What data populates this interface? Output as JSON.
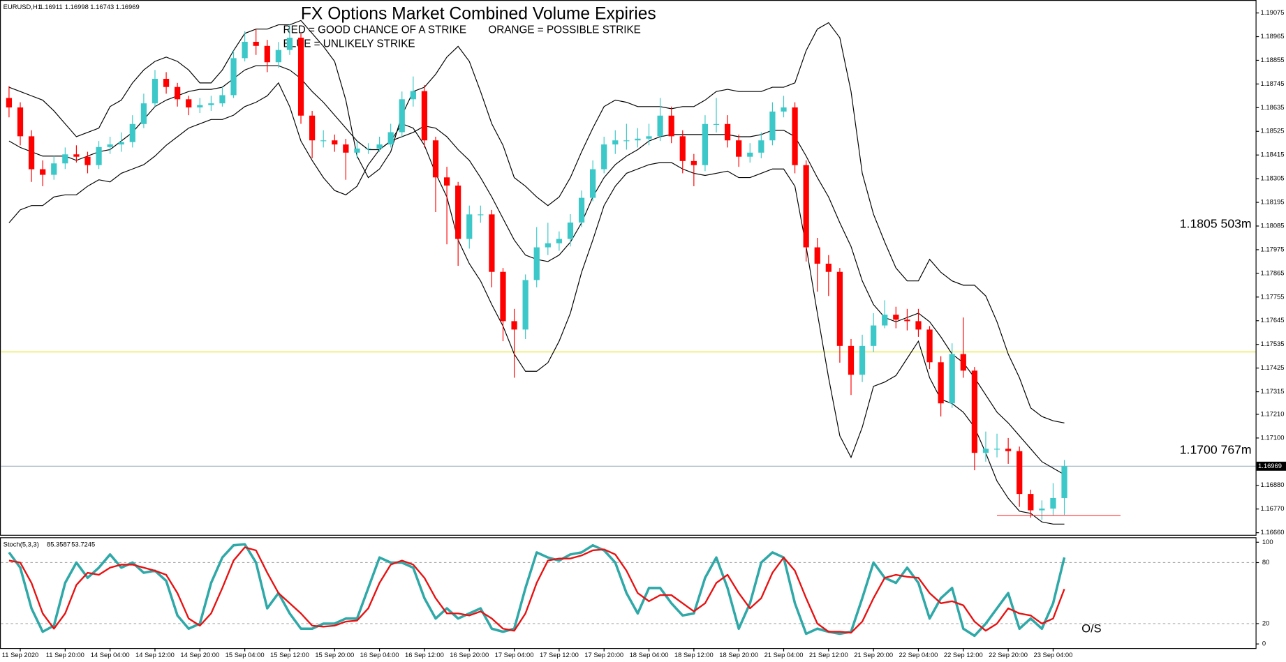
{
  "chart_data": [
    {
      "type": "candlestick",
      "header": "EURUSD,H1",
      "header_values": [
        1.16911,
        1.16998,
        1.16743,
        1.16969
      ],
      "title": "FX Options Market Combined Volume Expiries",
      "notes": [
        {
          "text": "RED = GOOD CHANCE OF A STRIKE",
          "color": "#ff2020"
        },
        {
          "text": "ORANGE = POSSIBLE STRIKE",
          "color": "#ff7a30"
        },
        {
          "text": "BLUE = UNLIKELY STRIKE",
          "color": "#3cc8d0"
        }
      ],
      "annotations": [
        {
          "value": 1.1805,
          "label": "1.1805 503m",
          "color": "#28c0d0"
        },
        {
          "value": 1.17,
          "label": "1.1700 767m",
          "color": "#ff1a1a"
        }
      ],
      "levels": [
        {
          "value": 1.175,
          "color": "#e8e830"
        }
      ],
      "strike_marks": [
        {
          "value": 1.1674,
          "color": "#ff3030"
        }
      ],
      "current_price": 1.16969,
      "current_price_color": "#9ab0c0",
      "up_color": "#3cc8c8",
      "down_color": "#ff0000",
      "categories": [
        null,
        "11 Sep 2020",
        null,
        null,
        null,
        "11 Sep 20:00",
        null,
        null,
        null,
        "14 Sep 04:00",
        null,
        null,
        null,
        "14 Sep 12:00",
        null,
        null,
        null,
        "14 Sep 20:00",
        null,
        null,
        null,
        "15 Sep 04:00",
        null,
        null,
        null,
        "15 Sep 12:00",
        null,
        null,
        null,
        "15 Sep 20:00",
        null,
        null,
        null,
        "16 Sep 04:00",
        null,
        null,
        null,
        "16 Sep 12:00",
        null,
        null,
        null,
        "16 Sep 20:00",
        null,
        null,
        null,
        "17 Sep 04:00",
        null,
        null,
        null,
        "17 Sep 12:00",
        null,
        null,
        null,
        "17 Sep 20:00",
        null,
        null,
        null,
        "18 Sep 04:00",
        null,
        null,
        null,
        "18 Sep 12:00",
        null,
        null,
        null,
        "18 Sep 20:00",
        null,
        null,
        null,
        "21 Sep 04:00",
        null,
        null,
        null,
        "21 Sep 12:00",
        null,
        null,
        null,
        "21 Sep 20:00",
        null,
        null,
        null,
        "22 Sep 04:00",
        null,
        null,
        null,
        "22 Sep 12:00",
        null,
        null,
        null,
        "22 Sep 20:00",
        null,
        null,
        null,
        "23 Sep 04:00",
        null
      ],
      "open": [
        1.1868,
        1.18636,
        1.18502,
        1.18349,
        1.18323,
        1.18376,
        1.18418,
        1.18407,
        1.18368,
        1.18452,
        1.18464,
        1.18475,
        1.18559,
        1.18655,
        1.18769,
        1.18731,
        1.18674,
        1.18636,
        1.18647,
        1.18655,
        1.18693,
        1.18865,
        1.18941,
        1.18922,
        1.18846,
        1.18903,
        1.1896,
        1.18598,
        1.18483,
        1.18483,
        1.18464,
        1.18426,
        1.18445,
        1.18445,
        1.18464,
        1.18521,
        1.18674,
        1.18712,
        1.18483,
        1.18311,
        1.18273,
        1.18025,
        1.18139,
        1.18139,
        1.17872,
        1.17643,
        1.17604,
        1.17834,
        1.17986,
        1.18005,
        1.18025,
        1.18101,
        1.18216,
        1.18349,
        1.18464,
        1.18483,
        1.18483,
        1.18491,
        1.18502,
        1.18598,
        1.18502,
        1.18387,
        1.18368,
        1.18559,
        1.18559,
        1.18483,
        1.18407,
        1.18426,
        1.18483,
        1.18617,
        1.18636,
        1.18368,
        1.17986,
        1.1791,
        1.17872,
        1.17528,
        1.17394,
        1.17528,
        1.17623,
        1.17673,
        1.1765,
        1.17643,
        1.17604,
        1.17452,
        1.17261,
        1.1749,
        1.17413,
        1.17031,
        1.1705,
        1.1705,
        1.17039,
        1.1684,
        1.16764,
        1.16772,
        1.16821
      ],
      "high": [
        1.18735,
        1.1866,
        1.1853,
        1.1839,
        1.1841,
        1.1845,
        1.1846,
        1.1843,
        1.1848,
        1.185,
        1.1852,
        1.186,
        1.187,
        1.1881,
        1.188,
        1.1875,
        1.1869,
        1.1868,
        1.1869,
        1.1873,
        1.189,
        1.1899,
        1.19,
        1.1895,
        1.1894,
        1.1902,
        1.1898,
        1.1862,
        1.1853,
        1.1851,
        1.1849,
        1.1848,
        1.1847,
        1.185,
        1.1856,
        1.1871,
        1.1878,
        1.1874,
        1.185,
        1.1836,
        1.1829,
        1.1818,
        1.1818,
        1.1816,
        1.1789,
        1.177,
        1.1786,
        1.1808,
        1.181,
        1.1806,
        1.1814,
        1.1825,
        1.1839,
        1.185,
        1.1853,
        1.1856,
        1.1854,
        1.1856,
        1.1868,
        1.1864,
        1.1853,
        1.1842,
        1.186,
        1.1868,
        1.186,
        1.1851,
        1.1847,
        1.1852,
        1.1866,
        1.1869,
        1.1866,
        1.1839,
        1.1803,
        1.1795,
        1.1789,
        1.1756,
        1.1758,
        1.1768,
        1.1774,
        1.1771,
        1.177,
        1.177,
        1.1762,
        1.1748,
        1.1754,
        1.1766,
        1.1743,
        1.1713,
        1.1712,
        1.171,
        1.1706,
        1.1686,
        1.1681,
        1.1689,
        1.16998
      ],
      "low": [
        1.1859,
        1.1846,
        1.1829,
        1.1827,
        1.183,
        1.1835,
        1.1838,
        1.1833,
        1.1835,
        1.1842,
        1.1843,
        1.1845,
        1.1854,
        1.1864,
        1.187,
        1.1864,
        1.186,
        1.1861,
        1.1862,
        1.1864,
        1.1868,
        1.1885,
        1.1888,
        1.188,
        1.1882,
        1.1888,
        1.1856,
        1.184,
        1.1845,
        1.1843,
        1.183,
        1.184,
        1.1842,
        1.1843,
        1.1845,
        1.185,
        1.1864,
        1.1845,
        1.1815,
        1.18,
        1.179,
        1.1798,
        1.181,
        1.178,
        1.1755,
        1.1738,
        1.1756,
        1.178,
        1.1795,
        1.1797,
        1.1799,
        1.1808,
        1.182,
        1.1833,
        1.1842,
        1.1844,
        1.1845,
        1.1846,
        1.1848,
        1.1847,
        1.1833,
        1.1827,
        1.1834,
        1.1852,
        1.1845,
        1.1836,
        1.1838,
        1.184,
        1.1846,
        1.1859,
        1.1833,
        1.1792,
        1.1778,
        1.1776,
        1.1745,
        1.173,
        1.1736,
        1.175,
        1.1761,
        1.1761,
        1.176,
        1.1757,
        1.1742,
        1.172,
        1.1724,
        1.1738,
        1.1695,
        1.1699,
        1.1701,
        1.1698,
        1.1678,
        1.1673,
        1.1672,
        1.1674,
        1.16743
      ],
      "close": [
        1.18636,
        1.18502,
        1.18349,
        1.18323,
        1.18376,
        1.18418,
        1.18407,
        1.18368,
        1.18452,
        1.18464,
        1.18475,
        1.18559,
        1.18655,
        1.18769,
        1.18731,
        1.18674,
        1.18636,
        1.18647,
        1.18655,
        1.18693,
        1.18865,
        1.18941,
        1.18922,
        1.18846,
        1.18903,
        1.1896,
        1.18598,
        1.18483,
        1.18483,
        1.18464,
        1.18426,
        1.18445,
        1.18445,
        1.18464,
        1.18521,
        1.18674,
        1.18712,
        1.18483,
        1.18311,
        1.18273,
        1.18025,
        1.18139,
        1.18139,
        1.17872,
        1.17643,
        1.17604,
        1.17834,
        1.17986,
        1.18005,
        1.18025,
        1.18101,
        1.18216,
        1.18349,
        1.18464,
        1.18483,
        1.18483,
        1.18491,
        1.18502,
        1.18598,
        1.18502,
        1.18387,
        1.18368,
        1.18559,
        1.18559,
        1.18483,
        1.18407,
        1.18426,
        1.18483,
        1.18617,
        1.18636,
        1.18368,
        1.17986,
        1.1791,
        1.17872,
        1.17528,
        1.17394,
        1.17528,
        1.17623,
        1.17673,
        1.1765,
        1.17643,
        1.17604,
        1.17452,
        1.17261,
        1.1749,
        1.17413,
        1.17031,
        1.1705,
        1.1705,
        1.17039,
        1.1684,
        1.16764,
        1.16772,
        1.16821,
        1.16969
      ],
      "bands": [
        {
          "color": "#000000",
          "values": [
            1.1873,
            1.1871,
            1.1869,
            1.1867,
            1.1862,
            1.1856,
            1.185,
            1.1852,
            1.1854,
            1.1864,
            1.1867,
            1.1875,
            1.1881,
            1.1885,
            1.1887,
            1.1885,
            1.1881,
            1.1875,
            1.1875,
            1.1881,
            1.189,
            1.1898,
            1.19,
            1.19,
            1.1902,
            1.1902,
            1.1904,
            1.1898,
            1.1892,
            1.1885,
            1.1867,
            1.1841,
            1.1831,
            1.1835,
            1.1843,
            1.186,
            1.1871,
            1.1873,
            1.1879,
            1.1887,
            1.1892,
            1.1885,
            1.1871,
            1.1856,
            1.1846,
            1.1831,
            1.1827,
            1.1822,
            1.1818,
            1.1822,
            1.1831,
            1.1843,
            1.1854,
            1.1864,
            1.1867,
            1.1866,
            1.1864,
            1.1864,
            1.1864,
            1.1863,
            1.1864,
            1.1864,
            1.1867,
            1.1871,
            1.1872,
            1.1871,
            1.1871,
            1.1871,
            1.1873,
            1.1873,
            1.1875,
            1.189,
            1.19,
            1.1903,
            1.1896,
            1.1871,
            1.1833,
            1.1814,
            1.1801,
            1.1789,
            1.1783,
            1.1783,
            1.1793,
            1.1787,
            1.1783,
            1.1781,
            1.1781,
            1.1776,
            1.1764,
            1.1749,
            1.1738,
            1.1724,
            1.172,
            1.1718,
            1.1717
          ]
        },
        {
          "color": "#000000",
          "values": [
            1.1848,
            1.1845,
            1.1843,
            1.1841,
            1.1841,
            1.1841,
            1.1839,
            1.1841,
            1.1843,
            1.1844,
            1.1848,
            1.1852,
            1.1858,
            1.1864,
            1.1867,
            1.1869,
            1.1871,
            1.1872,
            1.1872,
            1.1873,
            1.1877,
            1.1881,
            1.1883,
            1.1883,
            1.1883,
            1.1881,
            1.1877,
            1.1871,
            1.1866,
            1.186,
            1.1854,
            1.1848,
            1.1844,
            1.1844,
            1.1848,
            1.185,
            1.1852,
            1.1855,
            1.1854,
            1.185,
            1.1844,
            1.1839,
            1.1831,
            1.1822,
            1.1812,
            1.1802,
            1.1795,
            1.1793,
            1.1792,
            1.1795,
            1.1801,
            1.181,
            1.1822,
            1.1831,
            1.1837,
            1.1841,
            1.1844,
            1.1848,
            1.185,
            1.1851,
            1.1851,
            1.1851,
            1.1851,
            1.1851,
            1.1851,
            1.185,
            1.185,
            1.1851,
            1.1853,
            1.1853,
            1.185,
            1.1841,
            1.1831,
            1.1822,
            1.181,
            1.1799,
            1.1783,
            1.1772,
            1.1766,
            1.1764,
            1.1766,
            1.1768,
            1.1764,
            1.1757,
            1.1749,
            1.1745,
            1.1738,
            1.173,
            1.1722,
            1.1717,
            1.1711,
            1.1705,
            1.1699,
            1.1696,
            1.1693
          ]
        },
        {
          "color": "#000000",
          "values": [
            1.181,
            1.1816,
            1.1818,
            1.1818,
            1.1822,
            1.1823,
            1.1823,
            1.1827,
            1.183,
            1.1829,
            1.1833,
            1.1835,
            1.1837,
            1.1841,
            1.1846,
            1.185,
            1.1854,
            1.1856,
            1.1858,
            1.1858,
            1.186,
            1.1864,
            1.1866,
            1.1869,
            1.1875,
            1.1864,
            1.1848,
            1.1839,
            1.1831,
            1.1825,
            1.1823,
            1.1827,
            1.1837,
            1.1844,
            1.1848,
            1.1856,
            1.1854,
            1.1846,
            1.1833,
            1.1822,
            1.1802,
            1.1791,
            1.1783,
            1.1772,
            1.1762,
            1.1749,
            1.1741,
            1.1741,
            1.1745,
            1.1755,
            1.1768,
            1.1787,
            1.1802,
            1.1818,
            1.1827,
            1.1833,
            1.1835,
            1.1837,
            1.1838,
            1.1838,
            1.1835,
            1.1833,
            1.1832,
            1.1833,
            1.1834,
            1.1831,
            1.1831,
            1.1833,
            1.1835,
            1.1835,
            1.1827,
            1.1799,
            1.1768,
            1.1738,
            1.1711,
            1.1701,
            1.1715,
            1.1734,
            1.1736,
            1.1739,
            1.1747,
            1.1755,
            1.1738,
            1.1728,
            1.1726,
            1.1722,
            1.1715,
            1.1703,
            1.169,
            1.1682,
            1.1676,
            1.1675,
            1.1671,
            1.167,
            1.167
          ]
        }
      ],
      "ylim": [
        1.1665,
        1.1912
      ],
      "yticks": [
        1.19075,
        1.18965,
        1.18855,
        1.18745,
        1.18635,
        1.18525,
        1.18415,
        1.18305,
        1.18195,
        1.18085,
        1.17975,
        1.17865,
        1.17755,
        1.17645,
        1.17535,
        1.17425,
        1.17315,
        {
          "value": 1.1721,
          "label": "1.17210"
        },
        {
          "value": 1.171,
          "label": "1.17100"
        },
        {
          "value": 1.1688,
          "label": "1.16880"
        },
        {
          "value": 1.1677,
          "label": "1.16770"
        },
        {
          "value": 1.1666,
          "label": "1.16660"
        }
      ]
    },
    {
      "type": "line",
      "title": "Stoch(5,3,3)",
      "header_values": [
        85.3587,
        53.7245
      ],
      "annotation": "O/S",
      "series": [
        {
          "color": "#2fa8a8",
          "values": [
            90,
            75,
            35,
            12,
            18,
            60,
            80,
            65,
            75,
            88,
            75,
            80,
            70,
            72,
            62,
            28,
            15,
            20,
            60,
            85,
            97,
            98,
            80,
            35,
            50,
            30,
            15,
            15,
            20,
            20,
            25,
            25,
            55,
            85,
            80,
            80,
            75,
            45,
            25,
            35,
            25,
            30,
            35,
            15,
            12,
            15,
            55,
            90,
            85,
            82,
            88,
            90,
            97,
            92,
            80,
            50,
            30,
            55,
            55,
            40,
            28,
            30,
            65,
            85,
            55,
            15,
            40,
            80,
            90,
            85,
            40,
            10,
            15,
            12,
            10,
            12,
            45,
            80,
            65,
            60,
            75,
            60,
            25,
            45,
            55,
            15,
            8,
            20,
            35,
            50,
            15,
            25,
            15,
            40,
            85
          ]
        },
        {
          "color": "#e81010",
          "values": [
            82,
            80,
            60,
            30,
            15,
            30,
            58,
            70,
            68,
            75,
            78,
            78,
            75,
            72,
            68,
            50,
            25,
            18,
            30,
            55,
            82,
            95,
            92,
            70,
            50,
            40,
            30,
            18,
            17,
            18,
            22,
            23,
            35,
            60,
            78,
            82,
            78,
            65,
            45,
            30,
            30,
            28,
            32,
            25,
            15,
            13,
            30,
            60,
            82,
            84,
            84,
            87,
            92,
            93,
            88,
            72,
            50,
            42,
            48,
            48,
            40,
            32,
            40,
            60,
            68,
            50,
            35,
            45,
            70,
            85,
            72,
            45,
            20,
            12,
            12,
            11,
            22,
            45,
            65,
            68,
            66,
            65,
            50,
            40,
            42,
            38,
            22,
            13,
            20,
            35,
            30,
            28,
            20,
            25,
            54
          ]
        }
      ],
      "ylim": [
        0,
        100
      ],
      "yticks": [
        100,
        80,
        20,
        0
      ],
      "grid": true
    }
  ]
}
